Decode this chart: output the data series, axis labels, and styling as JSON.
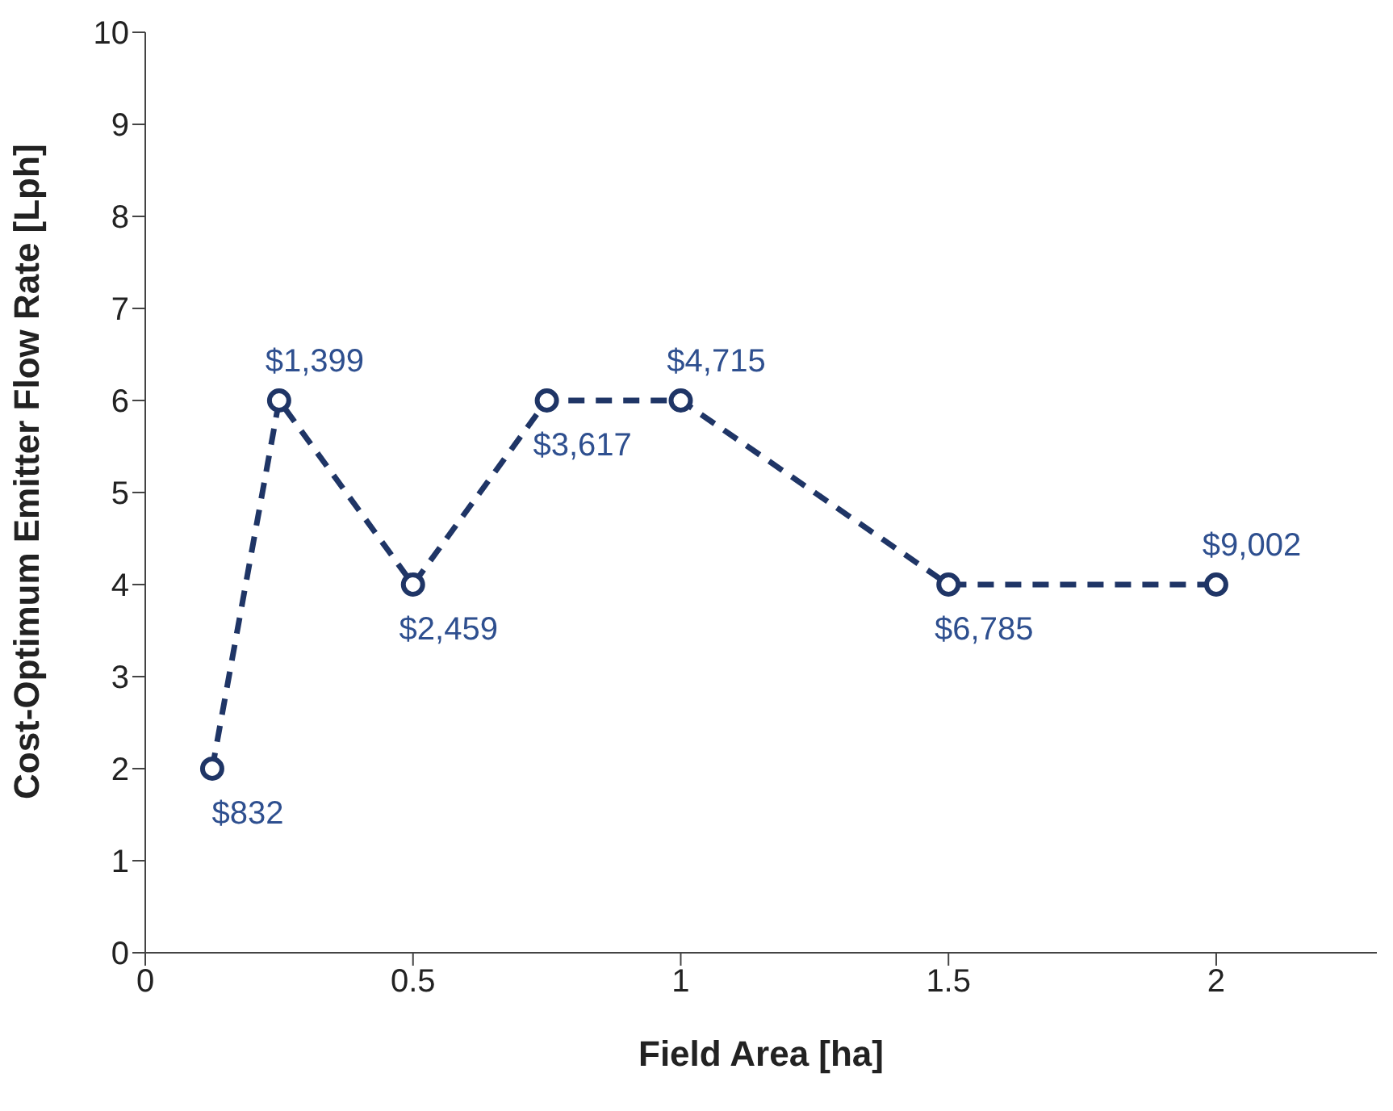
{
  "chart_data": {
    "type": "line",
    "xlabel": "Field Area [ha]",
    "ylabel": "Cost-Optimum Emitter Flow Rate [Lph]",
    "x": [
      0.125,
      0.25,
      0.5,
      0.75,
      1,
      1.5,
      2
    ],
    "series": [
      {
        "color": "#1f3566",
        "values": [
          2,
          6,
          4,
          6,
          6,
          4,
          4
        ]
      }
    ],
    "annotations": [
      {
        "text": "$832",
        "x": 0.125,
        "y": 2
      },
      {
        "text": "$1,399",
        "x": 0.25,
        "y": 6
      },
      {
        "text": "$2,459",
        "x": 0.5,
        "y": 4
      },
      {
        "text": "$3,617",
        "x": 0.75,
        "y": 6
      },
      {
        "text": "$4,715",
        "x": 1,
        "y": 6
      },
      {
        "text": "$6,785",
        "x": 1.5,
        "y": 4
      },
      {
        "text": "$9,002",
        "x": 2,
        "y": 4
      }
    ],
    "xlim": [
      0,
      2.3
    ],
    "xticks": [
      0,
      0.5,
      1,
      1.5,
      2
    ],
    "ylim": [
      0,
      10
    ],
    "yticks": [
      0,
      1,
      2,
      3,
      4,
      5,
      6,
      7,
      8,
      9,
      10
    ],
    "grid": false,
    "legend": false,
    "marker": "circle",
    "line_style": "dashed"
  }
}
